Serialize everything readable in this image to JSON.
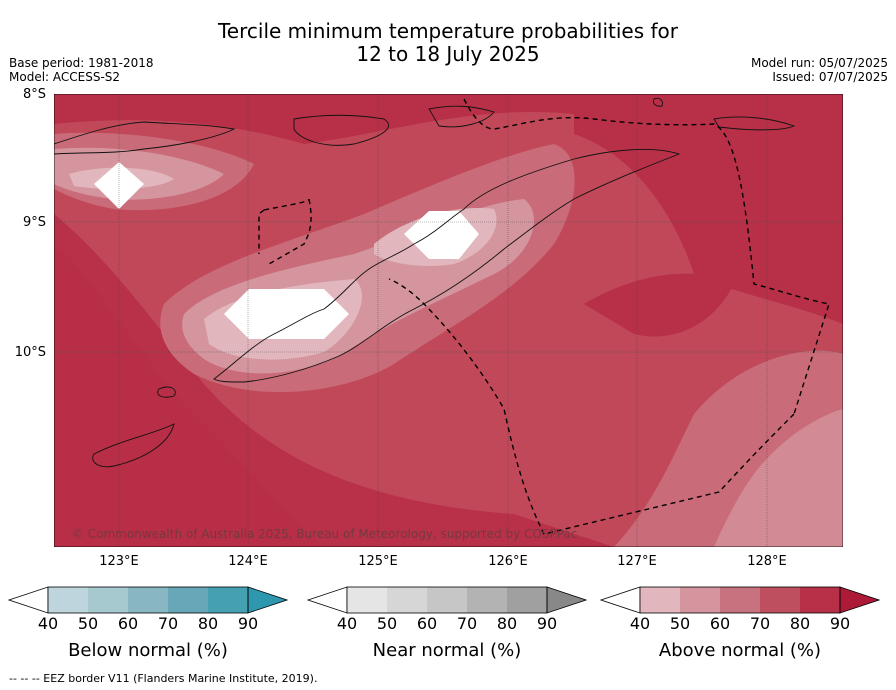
{
  "title_line1": "Tercile minimum temperature probabilities for",
  "title_line2": "12 to 18 July 2025",
  "base_period": "Base period: 1981-2018",
  "model": "Model: ACCESS-S2",
  "model_run": "Model run: 05/07/2025",
  "issued": "Issued: 07/07/2025",
  "lat_labels": [
    "8°S",
    "9°S",
    "10°S"
  ],
  "lon_labels": [
    "123°E",
    "124°E",
    "125°E",
    "126°E",
    "127°E",
    "128°E"
  ],
  "copyright": "© Commonwealth of Australia 2025, Bureau of Meteorology, supported by COSPPac",
  "colorbars": [
    {
      "label": "Below normal (%)",
      "ticks": [
        "40",
        "50",
        "60",
        "70",
        "80",
        "90"
      ],
      "colors": [
        "#ffffff",
        "#bed5dd",
        "#a6c8cf",
        "#88b7c3",
        "#67a7b7",
        "#45a0b2",
        "#2e97b0"
      ]
    },
    {
      "label": "Near normal (%)",
      "ticks": [
        "40",
        "50",
        "60",
        "70",
        "80",
        "90"
      ],
      "colors": [
        "#ffffff",
        "#e5e5e5",
        "#d6d6d6",
        "#c6c6c6",
        "#b3b3b3",
        "#a0a0a0",
        "#888888"
      ]
    },
    {
      "label": "Above normal (%)",
      "ticks": [
        "40",
        "50",
        "60",
        "70",
        "80",
        "90"
      ],
      "colors": [
        "#ffffff",
        "#e2b6bd",
        "#d4959e",
        "#c9727f",
        "#be4f5e",
        "#b83048",
        "#ad1a38"
      ]
    }
  ],
  "footer": "--  --  -- EEZ border V11 (Flanders Marine Institute, 2019).",
  "map_colors": {
    "p90": "#ad1a38",
    "p80": "#b83048",
    "p70": "#c14858",
    "p60": "#c96b78",
    "p50": "#d4959e",
    "p40": "#e2b6bd",
    "white": "#ffffff"
  }
}
